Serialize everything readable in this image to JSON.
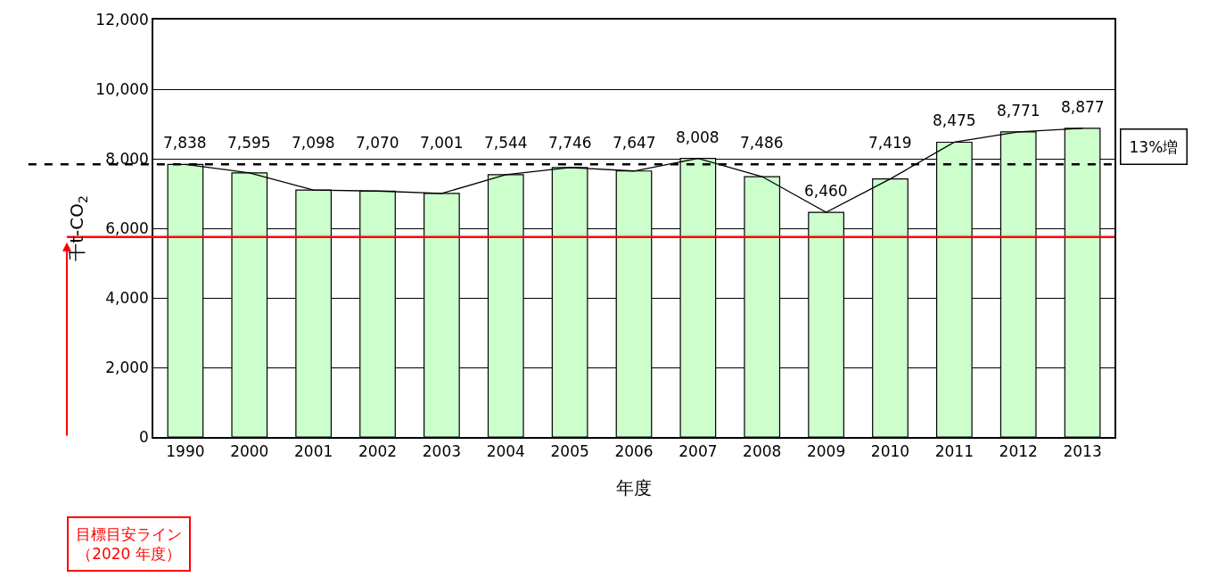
{
  "chart_data": {
    "type": "bar",
    "xlabel": "年度",
    "ylabel": "千t-CO$_{2}$",
    "categories": [
      "1990",
      "2000",
      "2001",
      "2002",
      "2003",
      "2004",
      "2005",
      "2006",
      "2007",
      "2008",
      "2009",
      "2010",
      "2011",
      "2012",
      "2013"
    ],
    "series": [
      {
        "color": "#ccffcc",
        "values": [
          7838,
          7595,
          7098,
          7070,
          7001,
          7544,
          7746,
          7647,
          8008,
          7486,
          6460,
          7419,
          8475,
          8771,
          8877
        ]
      },
      {
        "type": "line",
        "color": "#000000",
        "values": [
          7838,
          7595,
          7098,
          7070,
          7001,
          7544,
          7746,
          7647,
          8008,
          7486,
          6460,
          7419,
          8475,
          8771,
          8877
        ],
        "value_labels": [
          "7,838",
          "7,595",
          "7,098",
          "7,070",
          "7,001",
          "7,544",
          "7,746",
          "7,647",
          "8,008",
          "7,486",
          "6,460",
          "7,419",
          "8,475",
          "8,771",
          "8,877"
        ]
      }
    ],
    "ylim": [
      0,
      12000
    ],
    "yticks": [
      {
        "value": 0,
        "label": "0"
      },
      {
        "value": 2000,
        "label": "2,000"
      },
      {
        "value": 4000,
        "label": "4,000"
      },
      {
        "value": 6000,
        "label": "6,000"
      },
      {
        "value": 8000,
        "label": "8,000"
      },
      {
        "value": 10000,
        "label": "10,000"
      },
      {
        "value": 12000,
        "label": "12,000"
      }
    ],
    "grid": "y",
    "ref_lines": [
      {
        "axis": "y",
        "value": 7838,
        "color": "#000000",
        "line_style": "dashed"
      },
      {
        "axis": "y",
        "value": 5750,
        "color": "#ff0000",
        "line_style": "solid",
        "label": "目標目安ライン（2020 年度）"
      }
    ],
    "annotations": [
      "13%増"
    ]
  }
}
